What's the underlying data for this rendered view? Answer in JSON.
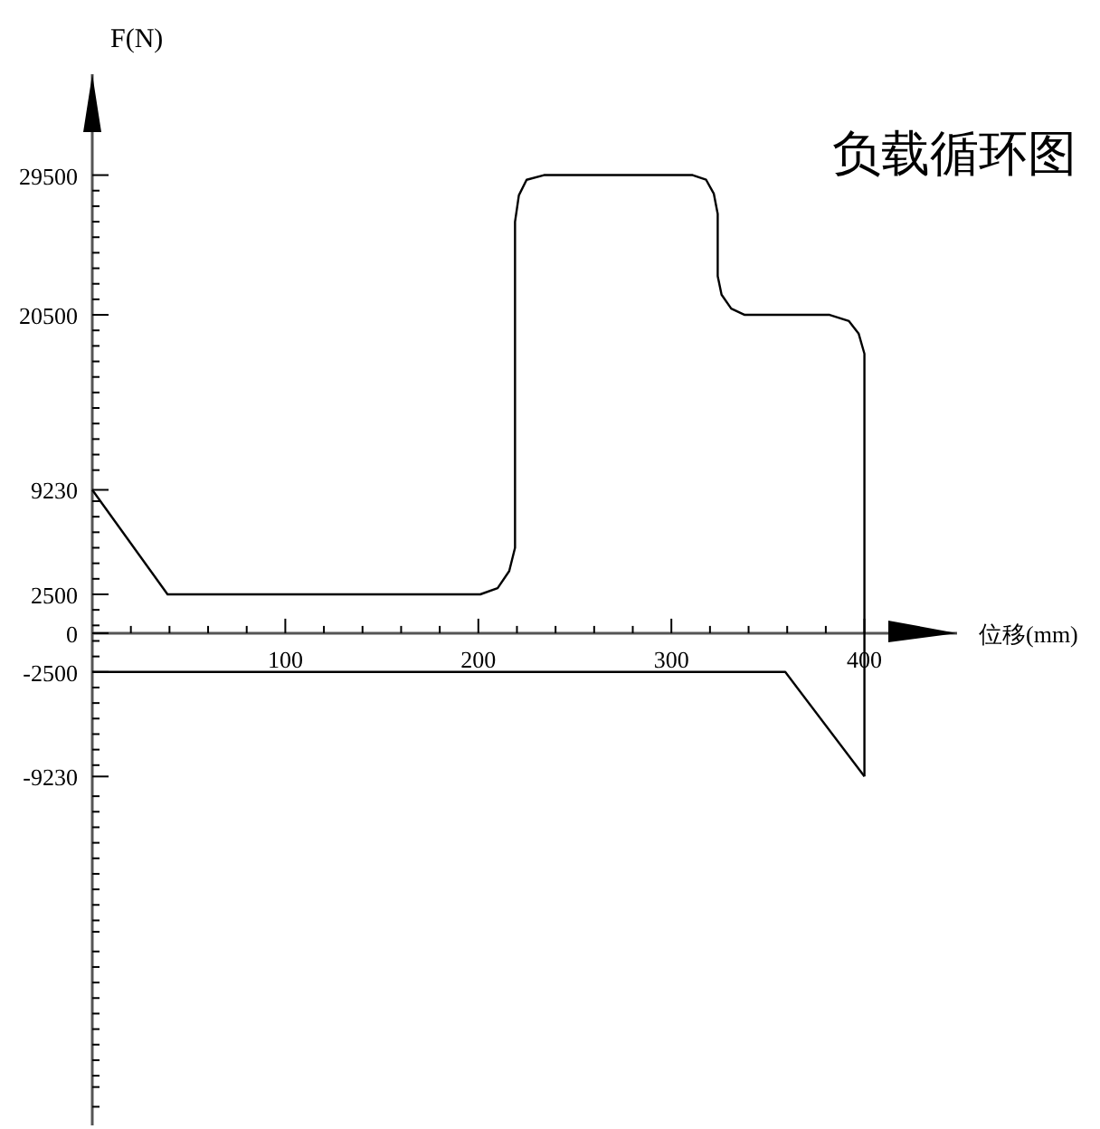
{
  "chart_data": {
    "type": "line",
    "title": "负载循环图",
    "xlabel": "位移(mm)",
    "ylabel": "F(N)",
    "xlim": [
      0,
      448
    ],
    "ylim": [
      -31700,
      36000
    ],
    "xticks": [
      {
        "value": 20,
        "label": null
      },
      {
        "value": 40,
        "label": null
      },
      {
        "value": 60,
        "label": null
      },
      {
        "value": 80,
        "label": null
      },
      100,
      {
        "value": 120,
        "label": null
      },
      {
        "value": 140,
        "label": null
      },
      {
        "value": 160,
        "label": null
      },
      {
        "value": 180,
        "label": null
      },
      200,
      {
        "value": 220,
        "label": null
      },
      {
        "value": 240,
        "label": null
      },
      {
        "value": 260,
        "label": null
      },
      {
        "value": 280,
        "label": null
      },
      300,
      {
        "value": 320,
        "label": null
      },
      {
        "value": 340,
        "label": null
      },
      {
        "value": 360,
        "label": null
      },
      {
        "value": 380,
        "label": null
      },
      400
    ],
    "yticks": [
      29500,
      {
        "value": 28500,
        "label": null
      },
      {
        "value": 27500,
        "label": null
      },
      {
        "value": 26500,
        "label": null
      },
      {
        "value": 25500,
        "label": null
      },
      {
        "value": 24500,
        "label": null
      },
      {
        "value": 23500,
        "label": null
      },
      {
        "value": 22500,
        "label": null
      },
      {
        "value": 21500,
        "label": null
      },
      20500,
      {
        "value": 19500,
        "label": null
      },
      {
        "value": 18500,
        "label": null
      },
      {
        "value": 17500,
        "label": null
      },
      {
        "value": 16500,
        "label": null
      },
      {
        "value": 15500,
        "label": null
      },
      {
        "value": 14500,
        "label": null
      },
      {
        "value": 13500,
        "label": null
      },
      {
        "value": 12500,
        "label": null
      },
      {
        "value": 11500,
        "label": null
      },
      {
        "value": 10500,
        "label": null
      },
      9230,
      {
        "value": 8500,
        "label": null
      },
      {
        "value": 7500,
        "label": null
      },
      {
        "value": 6500,
        "label": null
      },
      {
        "value": 5500,
        "label": null
      },
      {
        "value": 4500,
        "label": null
      },
      {
        "value": 3500,
        "label": null
      },
      2500,
      {
        "value": 1500,
        "label": null
      },
      {
        "value": 500,
        "label": null
      },
      0,
      {
        "value": -500,
        "label": null
      },
      {
        "value": -1500,
        "label": null
      },
      -2500,
      {
        "value": -3500,
        "label": null
      },
      {
        "value": -4500,
        "label": null
      },
      {
        "value": -5500,
        "label": null
      },
      {
        "value": -6500,
        "label": null
      },
      {
        "value": -7500,
        "label": null
      },
      {
        "value": -8500,
        "label": null
      },
      -9230,
      {
        "value": -10500,
        "label": null
      },
      {
        "value": -11500,
        "label": null
      },
      {
        "value": -12500,
        "label": null
      },
      {
        "value": -13500,
        "label": null
      },
      {
        "value": -14500,
        "label": null
      },
      {
        "value": -15500,
        "label": null
      },
      {
        "value": -16500,
        "label": null
      },
      {
        "value": -17500,
        "label": null
      },
      {
        "value": -18500,
        "label": null
      },
      {
        "value": -19230,
        "label": null
      },
      {
        "value": -20500,
        "label": null
      },
      {
        "value": -21500,
        "label": null
      },
      {
        "value": -22500,
        "label": null
      },
      {
        "value": -23500,
        "label": null
      },
      {
        "value": -24500,
        "label": null
      },
      {
        "value": -25500,
        "label": null
      },
      {
        "value": -26500,
        "label": null
      },
      {
        "value": -27500,
        "label": null
      },
      {
        "value": -28500,
        "label": null
      },
      {
        "value": -29230,
        "label": null
      },
      {
        "value": -30500,
        "label": null
      }
    ],
    "series": [
      {
        "color": "#000000",
        "x": [
          0,
          39,
          201,
          210,
          216,
          219,
          219,
          221,
          225,
          234,
          311,
          318,
          322,
          324,
          324,
          326,
          331,
          338,
          382,
          392,
          397,
          400,
          400
        ],
        "values": [
          9230,
          2500,
          2500,
          2900,
          4000,
          5500,
          26500,
          28200,
          29200,
          29500,
          29500,
          29200,
          28300,
          27000,
          23000,
          21800,
          20900,
          20500,
          20500,
          20100,
          19300,
          18000,
          -9230
        ]
      },
      {
        "color": "#000000",
        "x": [
          0,
          359,
          400
        ],
        "values": [
          -2500,
          -2500,
          -9230
        ]
      }
    ]
  }
}
